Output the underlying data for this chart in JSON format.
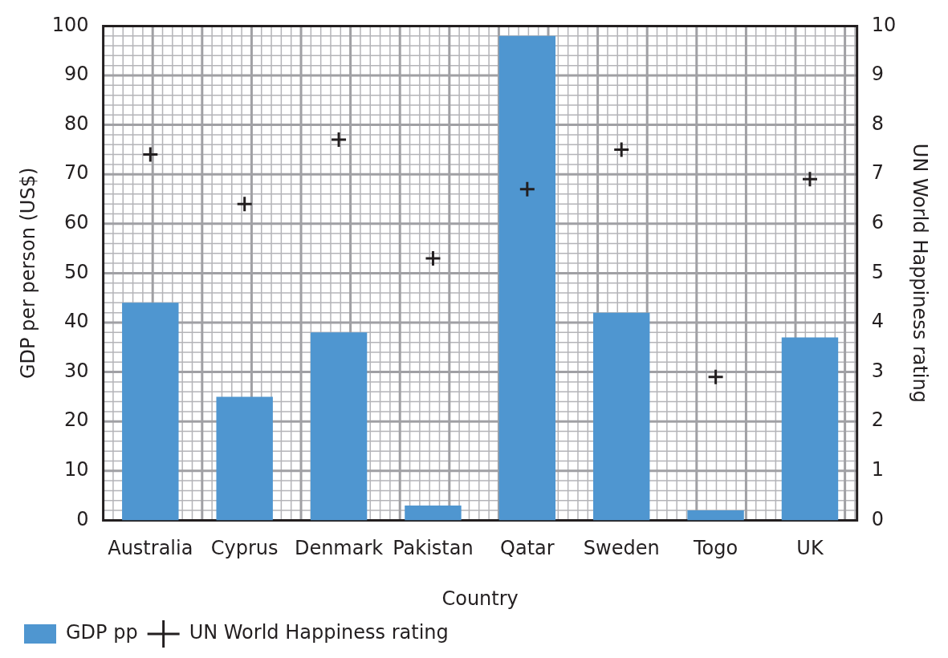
{
  "chart_data": {
    "type": "bar",
    "xlabel": "Country",
    "ylabel": "GDP per person (US$)",
    "y2label": "UN World Happiness rating",
    "categories": [
      "Australia",
      "Cyprus",
      "Denmark",
      "Pakistan",
      "Qatar",
      "Sweden",
      "Togo",
      "UK"
    ],
    "series": [
      {
        "name": "GDP pp",
        "color": "#4f96d0",
        "values": [
          44,
          25,
          38,
          3,
          98,
          42,
          2,
          37
        ]
      },
      {
        "name": "UN World Happiness rating",
        "type": "scatter",
        "axis": "y2",
        "color": "#231f20",
        "marker": "cross",
        "values": [
          7.4,
          6.4,
          7.7,
          5.3,
          6.7,
          7.5,
          2.9,
          6.9
        ]
      }
    ],
    "ylim": [
      0,
      100
    ],
    "yticks": [
      0,
      10,
      20,
      30,
      40,
      50,
      60,
      70,
      80,
      90,
      100
    ],
    "y2lim": [
      0,
      10
    ],
    "y2ticks": [
      0,
      1,
      2,
      3,
      4,
      5,
      6,
      7,
      8,
      9,
      10
    ],
    "grid": true,
    "legend": "bottom left"
  }
}
